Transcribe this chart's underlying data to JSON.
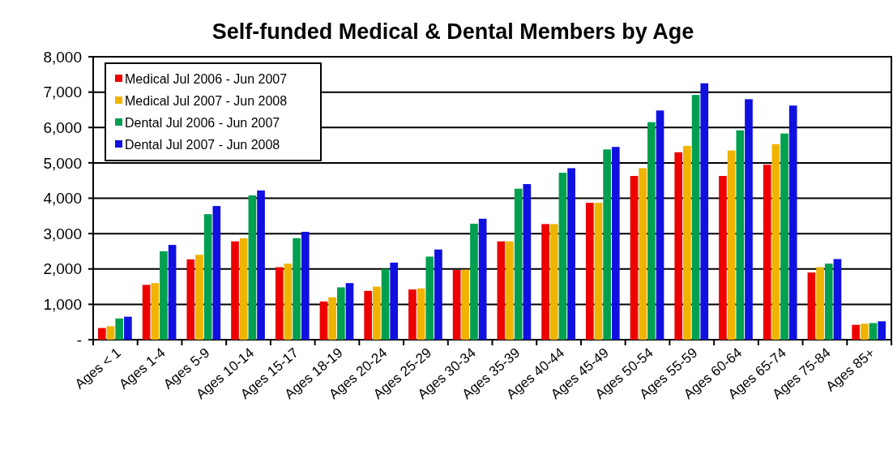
{
  "chart_data": {
    "type": "bar",
    "title": "Self-funded Medical & Dental Members by Age",
    "categories": [
      "Ages < 1",
      "Ages 1-4",
      "Ages 5-9",
      "Ages 10-14",
      "Ages 15-17",
      "Ages 18-19",
      "Ages 20-24",
      "Ages 25-29",
      "Ages 30-34",
      "Ages 35-39",
      "Ages 40-44",
      "Ages 45-49",
      "Ages 50-54",
      "Ages 55-59",
      "Ages 60-64",
      "Ages 65-74",
      "Ages 75-84",
      "Ages 85+"
    ],
    "series": [
      {
        "name": "Medical  Jul 2006  - Jun 2007",
        "color": "#ee0000",
        "values": [
          330,
          1550,
          2270,
          2780,
          2050,
          1080,
          1380,
          1420,
          1970,
          2780,
          3270,
          3870,
          4630,
          5300,
          4630,
          4950,
          1900,
          420
        ]
      },
      {
        "name": "Medical  Jul 2007  - Jun 2008",
        "color": "#f0b400",
        "values": [
          380,
          1600,
          2400,
          2870,
          2150,
          1200,
          1500,
          1450,
          1980,
          2780,
          3270,
          3870,
          4850,
          5480,
          5350,
          5530,
          2050,
          450
        ]
      },
      {
        "name": "Dental  Jul 2006  - Jun 2007",
        "color": "#00a050",
        "values": [
          600,
          2500,
          3550,
          4080,
          2870,
          1480,
          2000,
          2350,
          3280,
          4270,
          4720,
          5380,
          6150,
          6920,
          5920,
          5830,
          2150,
          470
        ]
      },
      {
        "name": "Dental  Jul 2007  - Jun 2008",
        "color": "#1010e0",
        "values": [
          650,
          2680,
          3780,
          4220,
          3050,
          1600,
          2180,
          2550,
          3420,
          4400,
          4850,
          5450,
          6480,
          7250,
          6800,
          6620,
          2280,
          520
        ]
      }
    ],
    "ylim": [
      0,
      8000
    ],
    "yticks": [
      {
        "value": 0,
        "label": "-"
      },
      {
        "value": 1000,
        "label": "1,000"
      },
      {
        "value": 2000,
        "label": "2,000"
      },
      {
        "value": 3000,
        "label": "3,000"
      },
      {
        "value": 4000,
        "label": "4,000"
      },
      {
        "value": 5000,
        "label": "5,000"
      },
      {
        "value": 6000,
        "label": "6,000"
      },
      {
        "value": 7000,
        "label": "7,000"
      },
      {
        "value": 8000,
        "label": "8,000"
      }
    ],
    "grid": "y",
    "legend": "top left"
  }
}
